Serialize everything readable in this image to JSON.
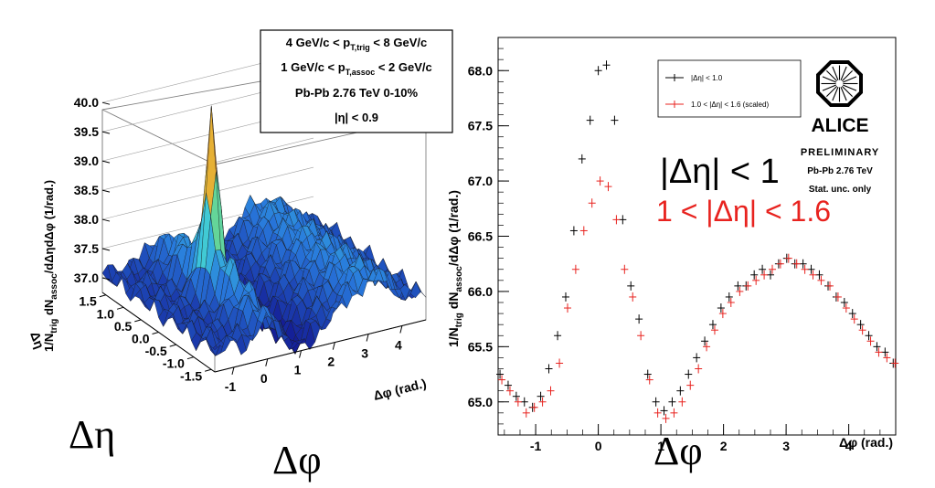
{
  "surface_plot": {
    "info_box": [
      "4 GeV/c < p_{T,trig} < 8 GeV/c",
      "1 GeV/c < p_{T,assoc} < 2 GeV/c",
      "Pb-Pb 2.76 TeV  0-10%",
      "|η| < 0.9"
    ],
    "info_line1": {
      "a": "4 GeV/c < p",
      "sub": "T,trig",
      "b": " < 8 GeV/c"
    },
    "info_line2": {
      "a": "1 GeV/c < p",
      "sub": "T,assoc",
      "b": " < 2 GeV/c"
    },
    "info_line3": "Pb-Pb 2.76 TeV  0-10%",
    "info_line4": "|η| < 0.9",
    "zlabel": {
      "a": "1/N",
      "sub1": "trig",
      "b": " dN",
      "sub2": "assoc",
      "c": "/dΔηdΔφ (1/rad.)"
    },
    "z_ticks": [
      "37.0",
      "37.5",
      "38.0",
      "38.5",
      "39.0",
      "39.5",
      "40.0"
    ],
    "eta_ticks": [
      "1.5",
      "1.0",
      "0.5",
      "0.0",
      "-0.5",
      "-1.0",
      "-1.5"
    ],
    "phi_ticks": [
      "-1",
      "0",
      "1",
      "2",
      "3",
      "4"
    ],
    "eta_axis_label": "Δη",
    "phi_axis_label": "Δφ (rad.)",
    "big_eta_label": "Δη",
    "big_phi_label": "Δφ"
  },
  "chart_data": {
    "type": "scatter",
    "title": "",
    "xlabel": "Δφ (rad.)",
    "ylabel": "1/N_trig dN_assoc/dΔφ (1/rad.)",
    "xlim": [
      -1.6,
      4.75
    ],
    "ylim": [
      64.7,
      68.3
    ],
    "x_ticks": [
      -1,
      0,
      1,
      2,
      3,
      4
    ],
    "x_tick_labels": [
      "-1",
      "0",
      "1",
      "2",
      "3",
      "4"
    ],
    "y_ticks": [
      65.0,
      65.5,
      66.0,
      66.5,
      67.0,
      67.5,
      68.0
    ],
    "y_tick_labels": [
      "65.0",
      "65.5",
      "66.0",
      "66.5",
      "67.0",
      "67.5",
      "68.0"
    ],
    "legend_position": "top-right",
    "series": [
      {
        "name": "|Δη| < 1.0",
        "color": "#000000",
        "x": [
          -1.57,
          -1.44,
          -1.31,
          -1.18,
          -1.05,
          -0.92,
          -0.79,
          -0.65,
          -0.52,
          -0.39,
          -0.26,
          -0.13,
          0.0,
          0.13,
          0.26,
          0.39,
          0.52,
          0.65,
          0.79,
          0.92,
          1.05,
          1.18,
          1.31,
          1.44,
          1.57,
          1.7,
          1.83,
          1.96,
          2.09,
          2.23,
          2.36,
          2.49,
          2.62,
          2.75,
          2.88,
          3.01,
          3.14,
          3.27,
          3.4,
          3.53,
          3.67,
          3.8,
          3.93,
          4.06,
          4.19,
          4.32,
          4.45,
          4.58,
          4.71
        ],
        "y": [
          65.25,
          65.15,
          65.05,
          65.0,
          64.95,
          65.05,
          65.3,
          65.6,
          65.95,
          66.55,
          67.2,
          67.55,
          68.0,
          68.05,
          67.55,
          66.65,
          66.05,
          65.75,
          65.25,
          65.0,
          64.92,
          65.0,
          65.1,
          65.25,
          65.4,
          65.55,
          65.7,
          65.85,
          65.95,
          66.05,
          66.05,
          66.15,
          66.2,
          66.15,
          66.25,
          66.3,
          66.25,
          66.25,
          66.2,
          66.15,
          66.05,
          65.95,
          65.9,
          65.8,
          65.7,
          65.6,
          65.5,
          65.45,
          65.35
        ]
      },
      {
        "name": "1.0 < |Δη| < 1.6 (scaled)",
        "color": "#e8231f",
        "x": [
          -1.57,
          -1.44,
          -1.31,
          -1.18,
          -1.05,
          -0.92,
          -0.79,
          -0.65,
          -0.52,
          -0.39,
          -0.26,
          -0.13,
          0.0,
          0.13,
          0.26,
          0.39,
          0.52,
          0.65,
          0.79,
          0.92,
          1.05,
          1.18,
          1.31,
          1.44,
          1.57,
          1.7,
          1.83,
          1.96,
          2.09,
          2.23,
          2.36,
          2.49,
          2.62,
          2.75,
          2.88,
          3.01,
          3.14,
          3.27,
          3.4,
          3.53,
          3.67,
          3.8,
          3.93,
          4.06,
          4.19,
          4.32,
          4.45,
          4.58,
          4.71
        ],
        "y": [
          65.2,
          65.1,
          65.0,
          64.9,
          64.95,
          65.0,
          65.1,
          65.35,
          65.85,
          66.2,
          66.55,
          66.8,
          67.0,
          66.95,
          66.65,
          66.2,
          65.95,
          65.6,
          65.2,
          64.9,
          64.85,
          64.9,
          65.0,
          65.15,
          65.3,
          65.5,
          65.65,
          65.8,
          65.9,
          66.0,
          66.05,
          66.1,
          66.15,
          66.2,
          66.25,
          66.3,
          66.25,
          66.2,
          66.15,
          66.1,
          66.05,
          65.95,
          65.85,
          65.75,
          65.65,
          65.55,
          65.45,
          65.4,
          65.35
        ]
      }
    ]
  },
  "plot_labels": {
    "ylabel": {
      "a": "1/N",
      "sub1": "trig",
      "b": " dN",
      "sub2": "assoc",
      "c": "/dΔφ (1/rad.)"
    },
    "xlabel": "Δφ (rad.)",
    "big_phi": "Δφ",
    "legend": {
      "entry1": "|Δη| < 1.0",
      "entry2": "1.0 < |Δη| < 1.6 (scaled)"
    },
    "alice_logo_text": "ALICE",
    "preliminary": "PRELIMINARY",
    "system": "Pb-Pb 2.76 TeV",
    "stat_note": "Stat. unc. only",
    "annotation1": "|Δη| < 1",
    "annotation2": "1 < |Δη| < 1.6",
    "annotation1_color": "#000000",
    "annotation2_color": "#e8231f"
  }
}
